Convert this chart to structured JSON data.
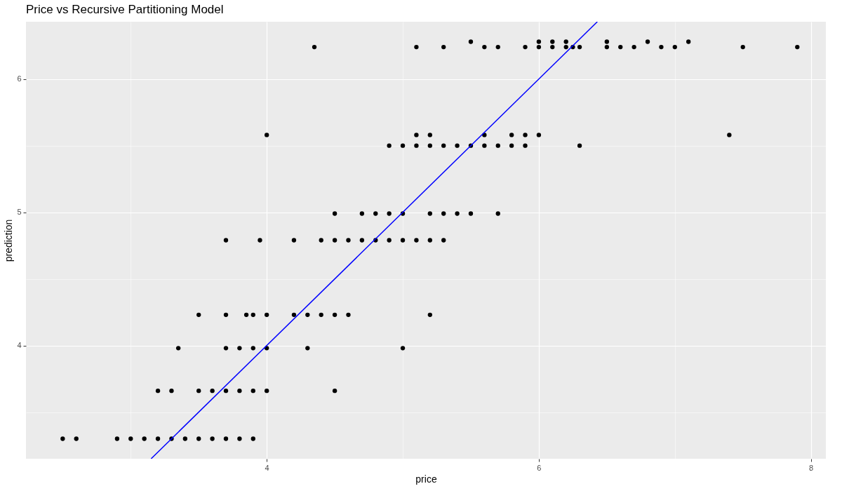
{
  "chart_data": {
    "type": "scatter",
    "title": "Price vs Recursive Partitioning Model",
    "xlabel": "price",
    "ylabel": "prediction",
    "xlim": [
      2.23,
      8.11
    ],
    "ylim": [
      3.15,
      6.43
    ],
    "xticks": [
      {
        "value": 3,
        "label": null
      },
      4,
      {
        "value": 5,
        "label": null
      },
      6,
      {
        "value": 7,
        "label": null
      },
      8
    ],
    "yticks": [
      {
        "value": 3.5,
        "label": null
      },
      4,
      {
        "value": 4.5,
        "label": null
      },
      5,
      {
        "value": 5.5,
        "label": null
      },
      6
    ],
    "grid": true,
    "series": [
      {
        "color": "#000000",
        "marker": "circle",
        "x": [
          2.5,
          2.6,
          2.9,
          3.0,
          3.1,
          3.2,
          3.3,
          3.4,
          3.5,
          3.6,
          3.7,
          3.8,
          3.9,
          3.2,
          3.3,
          3.5,
          3.6,
          3.7,
          3.8,
          3.9,
          4.0,
          4.5,
          3.35,
          3.7,
          3.8,
          3.9,
          4.0,
          4.3,
          5.0,
          3.5,
          3.7,
          3.85,
          3.9,
          4.0,
          4.2,
          4.3,
          4.4,
          4.5,
          4.6,
          5.2,
          3.7,
          3.95,
          4.2,
          4.4,
          4.5,
          4.6,
          4.7,
          4.8,
          4.9,
          5.0,
          5.1,
          5.2,
          5.3,
          4.5,
          4.7,
          4.8,
          4.9,
          5.0,
          5.2,
          5.3,
          5.4,
          5.5,
          5.7,
          4.9,
          5.0,
          5.1,
          5.2,
          5.3,
          5.4,
          5.5,
          5.6,
          5.7,
          5.8,
          5.9,
          6.3,
          4.0,
          5.1,
          5.2,
          5.6,
          5.8,
          5.9,
          6.0,
          7.4,
          4.35,
          5.1,
          5.3,
          5.6,
          5.7,
          5.9,
          6.0,
          6.1,
          6.2,
          6.25,
          6.3,
          6.5,
          6.6,
          6.7,
          6.9,
          7.0,
          7.5,
          7.9,
          5.5,
          6.0,
          6.1,
          6.2,
          6.5,
          6.8,
          7.1
        ],
        "values": [
          3.3,
          3.3,
          3.3,
          3.3,
          3.3,
          3.3,
          3.3,
          3.3,
          3.3,
          3.3,
          3.3,
          3.3,
          3.3,
          3.66,
          3.66,
          3.66,
          3.66,
          3.66,
          3.66,
          3.66,
          3.66,
          3.66,
          3.98,
          3.98,
          3.98,
          3.98,
          3.98,
          3.98,
          3.98,
          4.23,
          4.23,
          4.23,
          4.23,
          4.23,
          4.23,
          4.23,
          4.23,
          4.23,
          4.23,
          4.23,
          4.79,
          4.79,
          4.79,
          4.79,
          4.79,
          4.79,
          4.79,
          4.79,
          4.79,
          4.79,
          4.79,
          4.79,
          4.79,
          4.99,
          4.99,
          4.99,
          4.99,
          4.99,
          4.99,
          4.99,
          4.99,
          4.99,
          4.99,
          5.5,
          5.5,
          5.5,
          5.5,
          5.5,
          5.5,
          5.5,
          5.5,
          5.5,
          5.5,
          5.5,
          5.5,
          5.58,
          5.58,
          5.58,
          5.58,
          5.58,
          5.58,
          5.58,
          5.58,
          6.24,
          6.24,
          6.24,
          6.24,
          6.24,
          6.24,
          6.24,
          6.24,
          6.24,
          6.24,
          6.24,
          6.24,
          6.24,
          6.24,
          6.24,
          6.24,
          6.24,
          6.24,
          6.28,
          6.28,
          6.28,
          6.28,
          6.28,
          6.28,
          6.28
        ]
      },
      {
        "type": "line",
        "color": "#0000ff",
        "x": [
          3.15,
          6.43
        ],
        "values": [
          3.15,
          6.43
        ]
      }
    ]
  }
}
